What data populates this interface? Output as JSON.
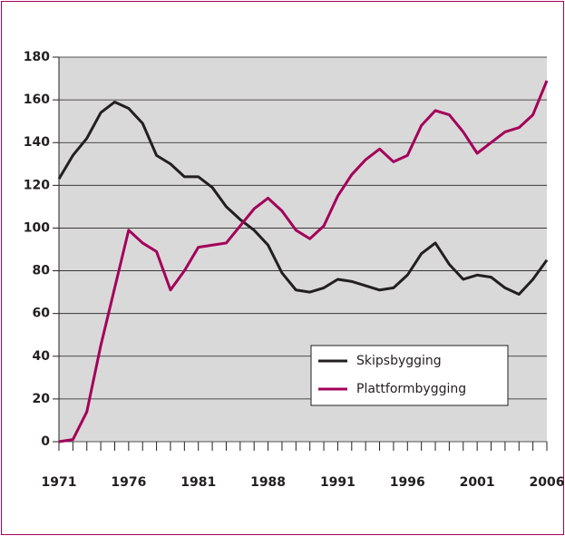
{
  "chart_data": {
    "type": "line",
    "categories": [
      "1971",
      null,
      null,
      null,
      null,
      "1976",
      null,
      null,
      null,
      null,
      "1981",
      null,
      null,
      null,
      null,
      "1988",
      null,
      null,
      null,
      null,
      "1991",
      null,
      null,
      null,
      null,
      "1996",
      null,
      null,
      null,
      null,
      "2001",
      null,
      null,
      null,
      null,
      "2006"
    ],
    "series": [
      {
        "name": "Skipsbygging",
        "color": "#231f20",
        "values": [
          123,
          134,
          142,
          154,
          159,
          156,
          149,
          134,
          130,
          124,
          124,
          119,
          110,
          104,
          99,
          92,
          79,
          71,
          70,
          72,
          76,
          75,
          73,
          71,
          72,
          78,
          88,
          93,
          83,
          76,
          78,
          77,
          72,
          69,
          76,
          85
        ]
      },
      {
        "name": "Plattformbygging",
        "color": "#a3005a",
        "values": [
          0,
          1,
          14,
          45,
          72,
          99,
          93,
          89,
          71,
          80,
          91,
          92,
          93,
          101,
          109,
          114,
          108,
          99,
          95,
          101,
          115,
          125,
          132,
          137,
          131,
          134,
          148,
          155,
          153,
          145,
          135,
          140,
          145,
          147,
          153,
          169
        ]
      }
    ],
    "ylim": [
      0,
      180
    ],
    "yticks": [
      0,
      20,
      40,
      60,
      80,
      100,
      120,
      140,
      160,
      180
    ],
    "grid": true,
    "legend": "lower right"
  }
}
